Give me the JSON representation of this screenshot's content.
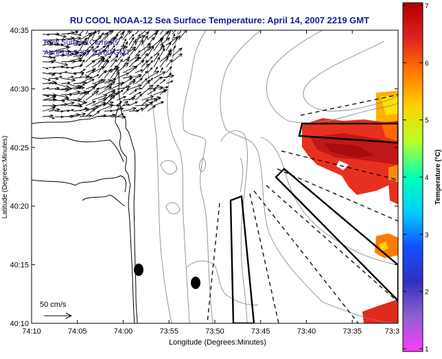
{
  "title": "RU COOL  NOAA-12  Sea Surface Temperature:  April 14, 2007 2219 GMT",
  "legend": {
    "line1": "Raw Surface Currents",
    "line2": "April 14, 2007 22:00 GMT"
  },
  "scale_label": "50 cm/s",
  "axes": {
    "xlabel": "Longitude (Degrees:Minutes)",
    "ylabel": "Latitude (Degrees:Minutes)",
    "x_ticks": [
      "74:10",
      "74:05",
      "74:00",
      "73:55",
      "73:50",
      "73:45",
      "73:40",
      "73:35",
      "73:3"
    ],
    "y_ticks": [
      "40:35",
      "40:30",
      "40:25",
      "40:20",
      "40:15",
      "40:10"
    ]
  },
  "colorbar": {
    "label": "Temperature (°C)",
    "ticks": [
      "7",
      "6",
      "5",
      "4",
      "3",
      "2",
      "1"
    ],
    "colors": [
      "#b00000",
      "#e02020",
      "#ff7a00",
      "#ffd200",
      "#b6ff2a",
      "#00ffb5",
      "#00d0ff",
      "#1050ff",
      "#3030c0",
      "#9060d0",
      "#ff3aff"
    ]
  },
  "colors": {
    "title": "#1a1a9a",
    "legend_text": "#1a1a9a",
    "frame": "#000000",
    "bathymetry": "#8a8a8a",
    "arrows": "#000000"
  }
}
